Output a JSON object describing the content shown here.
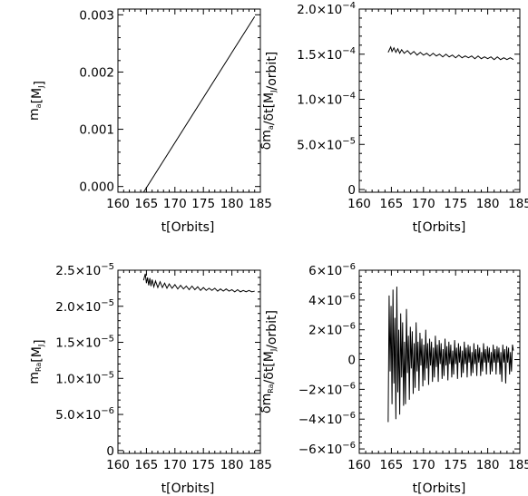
{
  "chart_data": [
    {
      "type": "line",
      "panel": "top-left",
      "xlabel": "t[Orbits]",
      "ylabel": "m_a[M_J]",
      "xlim": [
        160,
        185
      ],
      "ylim": [
        -0.0001,
        0.0031
      ],
      "xticks": [
        160,
        165,
        170,
        175,
        180,
        185
      ],
      "xtick_labels": [
        "160",
        "165",
        "170",
        "175",
        "180",
        "185"
      ],
      "yticks": [
        0.0,
        0.001,
        0.002,
        0.003
      ],
      "ytick_labels": [
        "0.000",
        "0.001",
        "0.002",
        "0.003"
      ],
      "series": [
        {
          "x": [
            164.5,
            184.0
          ],
          "y": [
            -0.0001,
            0.00297
          ]
        }
      ]
    },
    {
      "type": "line",
      "panel": "top-right",
      "xlabel": "t[Orbits]",
      "ylabel": "δm_a/δt[M_J/orbit]",
      "xlim": [
        160,
        185
      ],
      "ylim": [
        -3e-06,
        0.0002
      ],
      "xticks": [
        160,
        165,
        170,
        175,
        180,
        185
      ],
      "xtick_labels": [
        "160",
        "165",
        "170",
        "175",
        "180",
        "185"
      ],
      "yticks": [
        0,
        5e-05,
        0.0001,
        0.00015,
        0.0002
      ],
      "ytick_labels": [
        {
          "m": "0",
          "e": ""
        },
        {
          "m": "5.0×10",
          "e": "−5"
        },
        {
          "m": "1.0×10",
          "e": "−4"
        },
        {
          "m": "1.5×10",
          "e": "−4"
        },
        {
          "m": "2.0×10",
          "e": "−4"
        }
      ],
      "series": [
        {
          "x": [
            164.5,
            164.9,
            165.1,
            165.4,
            165.7,
            166.0,
            166.3,
            166.6,
            167.0,
            167.5,
            168.0,
            168.5,
            169.0,
            169.5,
            170.0,
            170.5,
            171.0,
            171.5,
            172.0,
            172.5,
            173.0,
            173.5,
            174.0,
            174.5,
            175.0,
            175.5,
            176.0,
            176.5,
            177.0,
            177.5,
            178.0,
            178.5,
            179.0,
            179.5,
            180.0,
            180.5,
            181.0,
            181.5,
            182.0,
            182.5,
            183.0,
            183.5,
            184.0
          ],
          "y": [
            0.000152,
            0.000158,
            0.000153,
            0.000157,
            0.000152,
            0.000156,
            0.000151,
            0.000155,
            0.000151,
            0.000154,
            0.00015,
            0.000153,
            0.000149,
            0.000152,
            0.000149,
            0.000151,
            0.000148,
            0.000151,
            0.000148,
            0.00015,
            0.000147,
            0.00015,
            0.000147,
            0.000149,
            0.000146,
            0.000149,
            0.000146,
            0.000148,
            0.000146,
            0.000148,
            0.000145,
            0.000148,
            0.000145,
            0.000147,
            0.000145,
            0.000147,
            0.000144,
            0.000147,
            0.000144,
            0.000146,
            0.000144,
            0.000146,
            0.000144
          ]
        }
      ]
    },
    {
      "type": "line",
      "panel": "bottom-left",
      "xlabel": "t[Orbits]",
      "ylabel": "m_Ra[M_J]",
      "xlim": [
        160,
        185
      ],
      "ylim": [
        -4e-07,
        2.5e-05
      ],
      "xticks": [
        160,
        165,
        170,
        175,
        180,
        185
      ],
      "xtick_labels": [
        "160",
        "165",
        "170",
        "175",
        "180",
        "185"
      ],
      "yticks": [
        0,
        5e-06,
        1e-05,
        1.5e-05,
        2e-05,
        2.5e-05
      ],
      "ytick_labels": [
        {
          "m": "0",
          "e": ""
        },
        {
          "m": "5.0×10",
          "e": "−6"
        },
        {
          "m": "1.0×10",
          "e": "−5"
        },
        {
          "m": "1.5×10",
          "e": "−5"
        },
        {
          "m": "2.0×10",
          "e": "−5"
        },
        {
          "m": "2.5×10",
          "e": "−5"
        }
      ],
      "series": [
        {
          "x": [
            164.5,
            164.8,
            165.0,
            165.2,
            165.4,
            165.6,
            165.8,
            166.0,
            166.3,
            166.6,
            167.0,
            167.4,
            167.8,
            168.2,
            168.6,
            169.0,
            169.5,
            170.0,
            170.5,
            171.0,
            171.5,
            172.0,
            172.5,
            173.0,
            173.5,
            174.0,
            174.5,
            175.0,
            175.5,
            176.0,
            176.5,
            177.0,
            177.5,
            178.0,
            178.5,
            179.0,
            179.5,
            180.0,
            180.5,
            181.0,
            181.5,
            182.0,
            182.5,
            183.0,
            183.5,
            184.0
          ],
          "y": [
            2.36e-05,
            2.45e-05,
            2.32e-05,
            2.4e-05,
            2.29e-05,
            2.39e-05,
            2.28e-05,
            2.37e-05,
            2.27e-05,
            2.35e-05,
            2.26e-05,
            2.34e-05,
            2.26e-05,
            2.32e-05,
            2.25e-05,
            2.31e-05,
            2.25e-05,
            2.3e-05,
            2.24e-05,
            2.29e-05,
            2.24e-05,
            2.28e-05,
            2.23e-05,
            2.28e-05,
            2.23e-05,
            2.27e-05,
            2.22e-05,
            2.26e-05,
            2.22e-05,
            2.25e-05,
            2.22e-05,
            2.25e-05,
            2.21e-05,
            2.24e-05,
            2.21e-05,
            2.24e-05,
            2.21e-05,
            2.23e-05,
            2.2e-05,
            2.23e-05,
            2.2e-05,
            2.22e-05,
            2.2e-05,
            2.22e-05,
            2.2e-05,
            2.21e-05
          ]
        }
      ]
    },
    {
      "type": "line",
      "panel": "bottom-right",
      "xlabel": "t[Orbits]",
      "ylabel": "δm_Ra/δt[M_J/orbit]",
      "xlim": [
        160,
        185
      ],
      "ylim": [
        -6.3e-06,
        6e-06
      ],
      "xticks": [
        160,
        165,
        170,
        175,
        180,
        185
      ],
      "xtick_labels": [
        "160",
        "165",
        "170",
        "175",
        "180",
        "185"
      ],
      "yticks": [
        -6e-06,
        -4e-06,
        -2e-06,
        0,
        2e-06,
        4e-06,
        6e-06
      ],
      "ytick_labels": [
        {
          "m": "−6×10",
          "e": "−6"
        },
        {
          "m": "−4×10",
          "e": "−6"
        },
        {
          "m": "−2×10",
          "e": "−6"
        },
        {
          "m": "0",
          "e": ""
        },
        {
          "m": "2×10",
          "e": "−6"
        },
        {
          "m": "4×10",
          "e": "−6"
        },
        {
          "m": "6×10",
          "e": "−6"
        }
      ],
      "series": [
        {
          "x": [
            164.5,
            164.65,
            164.8,
            164.95,
            165.1,
            165.25,
            165.4,
            165.55,
            165.7,
            165.85,
            166.0,
            166.15,
            166.3,
            166.45,
            166.6,
            166.75,
            166.9,
            167.05,
            167.2,
            167.35,
            167.5,
            167.65,
            167.8,
            167.95,
            168.1,
            168.25,
            168.4,
            168.55,
            168.7,
            168.85,
            169.0,
            169.15,
            169.3,
            169.45,
            169.6,
            169.75,
            169.9,
            170.05,
            170.2,
            170.35,
            170.5,
            170.65,
            170.8,
            170.95,
            171.1,
            171.25,
            171.4,
            171.55,
            171.7,
            171.85,
            172.0,
            172.15,
            172.3,
            172.45,
            172.6,
            172.75,
            172.9,
            173.05,
            173.2,
            173.35,
            173.5,
            173.65,
            173.8,
            173.95,
            174.1,
            174.25,
            174.4,
            174.55,
            174.7,
            174.85,
            175.0,
            175.15,
            175.3,
            175.45,
            175.6,
            175.75,
            175.9,
            176.05,
            176.2,
            176.35,
            176.5,
            176.65,
            176.8,
            176.95,
            177.1,
            177.25,
            177.4,
            177.55,
            177.7,
            177.85,
            178.0,
            178.15,
            178.3,
            178.45,
            178.6,
            178.75,
            178.9,
            179.05,
            179.2,
            179.35,
            179.5,
            179.65,
            179.8,
            179.95,
            180.1,
            180.25,
            180.4,
            180.55,
            180.7,
            180.85,
            181.0,
            181.15,
            181.3,
            181.45,
            181.6,
            181.75,
            181.9,
            182.05,
            182.2,
            182.35,
            182.5,
            182.65,
            182.8,
            182.95,
            183.1,
            183.25,
            183.4,
            183.55,
            183.7,
            183.85,
            184.0
          ],
          "y": [
            -4.2e-06,
            4.3e-06,
            -8e-07,
            3.6e-06,
            -3e-06,
            4.7e-06,
            -1.6e-06,
            2.8e-06,
            -4e-06,
            4.9e-06,
            -2.2e-06,
            2e-06,
            -3.7e-06,
            3.1e-06,
            -1.2e-06,
            2.5e-06,
            -3.1e-06,
            1.2e-06,
            -3e-06,
            3.4e-06,
            -9e-07,
            1.6e-06,
            -2.7e-06,
            2.2e-06,
            -6e-07,
            1.9e-06,
            -2.3e-06,
            1.1e-06,
            -1.9e-06,
            2.5e-06,
            -8e-07,
            1.2e-06,
            -2.1e-06,
            1.8e-06,
            -4e-07,
            1.4e-06,
            -1.8e-06,
            1e-06,
            -1.4e-06,
            2e-06,
            -6e-07,
            1.1e-06,
            -1.7e-06,
            1.4e-06,
            -4e-07,
            1.2e-06,
            -1.5e-06,
            8e-07,
            -1.2e-06,
            1.6e-06,
            -5e-07,
            1e-06,
            -1.5e-06,
            1.3e-06,
            -3e-07,
            1.1e-06,
            -1.3e-06,
            7e-07,
            -1.1e-06,
            1.4e-06,
            -4e-07,
            9e-07,
            -1.4e-06,
            1.2e-06,
            -3e-07,
            1e-06,
            -1.2e-06,
            6e-07,
            -1e-06,
            1.3e-06,
            -3e-07,
            8e-07,
            -1.3e-06,
            1.1e-06,
            -2e-07,
            9e-07,
            -1.2e-06,
            6e-07,
            -9e-07,
            1.2e-06,
            -3e-07,
            8e-07,
            -1.2e-06,
            1e-06,
            -2e-07,
            9e-07,
            -1.1e-06,
            5e-07,
            -9e-07,
            1.1e-06,
            -3e-07,
            7e-07,
            -1.1e-06,
            1e-06,
            -2e-07,
            8e-07,
            -1.1e-06,
            5e-07,
            -8e-07,
            1.1e-06,
            -2e-07,
            7e-07,
            -1e-06,
            9e-07,
            -2e-07,
            8e-07,
            -1e-06,
            5e-07,
            -8e-07,
            1e-06,
            -2e-07,
            7e-07,
            -1e-06,
            9e-07,
            -2e-07,
            8e-07,
            -1e-06,
            5e-07,
            -1.5e-06,
            1e-06,
            -2e-07,
            7e-07,
            -1.6e-06,
            9e-07,
            -2e-07,
            8e-07,
            -1e-06,
            5e-07,
            -8e-07,
            1e-06,
            6e-07
          ]
        }
      ]
    }
  ]
}
